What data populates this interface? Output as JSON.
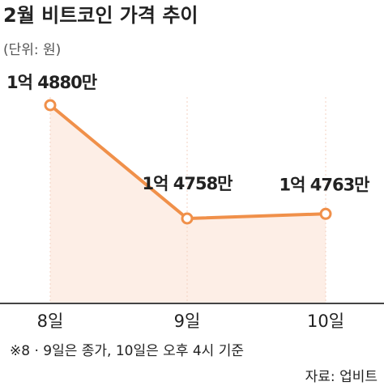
{
  "chart_data": {
    "type": "line",
    "title": "2월 비트코인 가격 추이",
    "subtitle": "(단위: 원)",
    "categories": [
      "8일",
      "9일",
      "10일"
    ],
    "values": [
      148800000,
      147580000,
      147630000
    ],
    "value_labels": [
      "1억 4880만",
      "1억 4758만",
      "1억 4763만"
    ],
    "color": "#f0904a",
    "area_color": "#fdeee6",
    "note": "※8 · 9일은 종가, 10일은 오후 4시 기준",
    "source": "자료: 업비트"
  }
}
